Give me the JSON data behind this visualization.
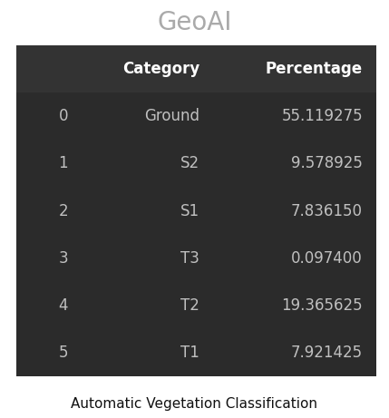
{
  "title": "GeoAI",
  "caption": "Automatic Vegetation Classification",
  "table_bg_color": "#2b2b2b",
  "header_bg_color": "#333333",
  "page_bg_color": "#ffffff",
  "header_text_color": "#ffffff",
  "row_text_color": "#c0c0c0",
  "title_color": "#aaaaaa",
  "caption_color": "#111111",
  "columns": [
    "",
    "Category",
    "Percentage"
  ],
  "rows": [
    [
      "0",
      "Ground",
      "55.119275"
    ],
    [
      "1",
      "S2",
      "9.578925"
    ],
    [
      "2",
      "S1",
      "7.836150"
    ],
    [
      "3",
      "T3",
      "0.097400"
    ],
    [
      "4",
      "T2",
      "19.365625"
    ],
    [
      "5",
      "T1",
      "7.921425"
    ]
  ],
  "header_fontsize": 12,
  "row_fontsize": 12,
  "title_fontsize": 20,
  "caption_fontsize": 11
}
